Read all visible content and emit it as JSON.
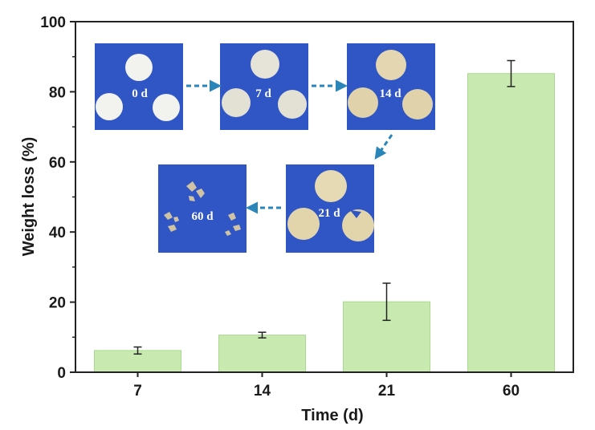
{
  "chart_data": {
    "type": "bar",
    "categories": [
      "7",
      "14",
      "21",
      "60"
    ],
    "values": [
      6.2,
      10.6,
      20.1,
      85.2
    ],
    "errors": [
      1.0,
      0.8,
      5.3,
      3.7
    ],
    "xlabel": "Time (d)",
    "ylabel": "Weight loss (%)",
    "ylim": [
      0,
      100
    ],
    "yticks": [
      "0",
      "20",
      "40",
      "60",
      "80",
      "100"
    ],
    "grid": false,
    "bar_color": "#c8eab0",
    "bar_edge_color": "#a9d98e"
  },
  "inset_photos": {
    "labels": [
      "0 d",
      "7 d",
      "14 d",
      "21 d",
      "60 d"
    ],
    "background_color": "#2f56c4",
    "arrow_color": "#2a86b8"
  }
}
